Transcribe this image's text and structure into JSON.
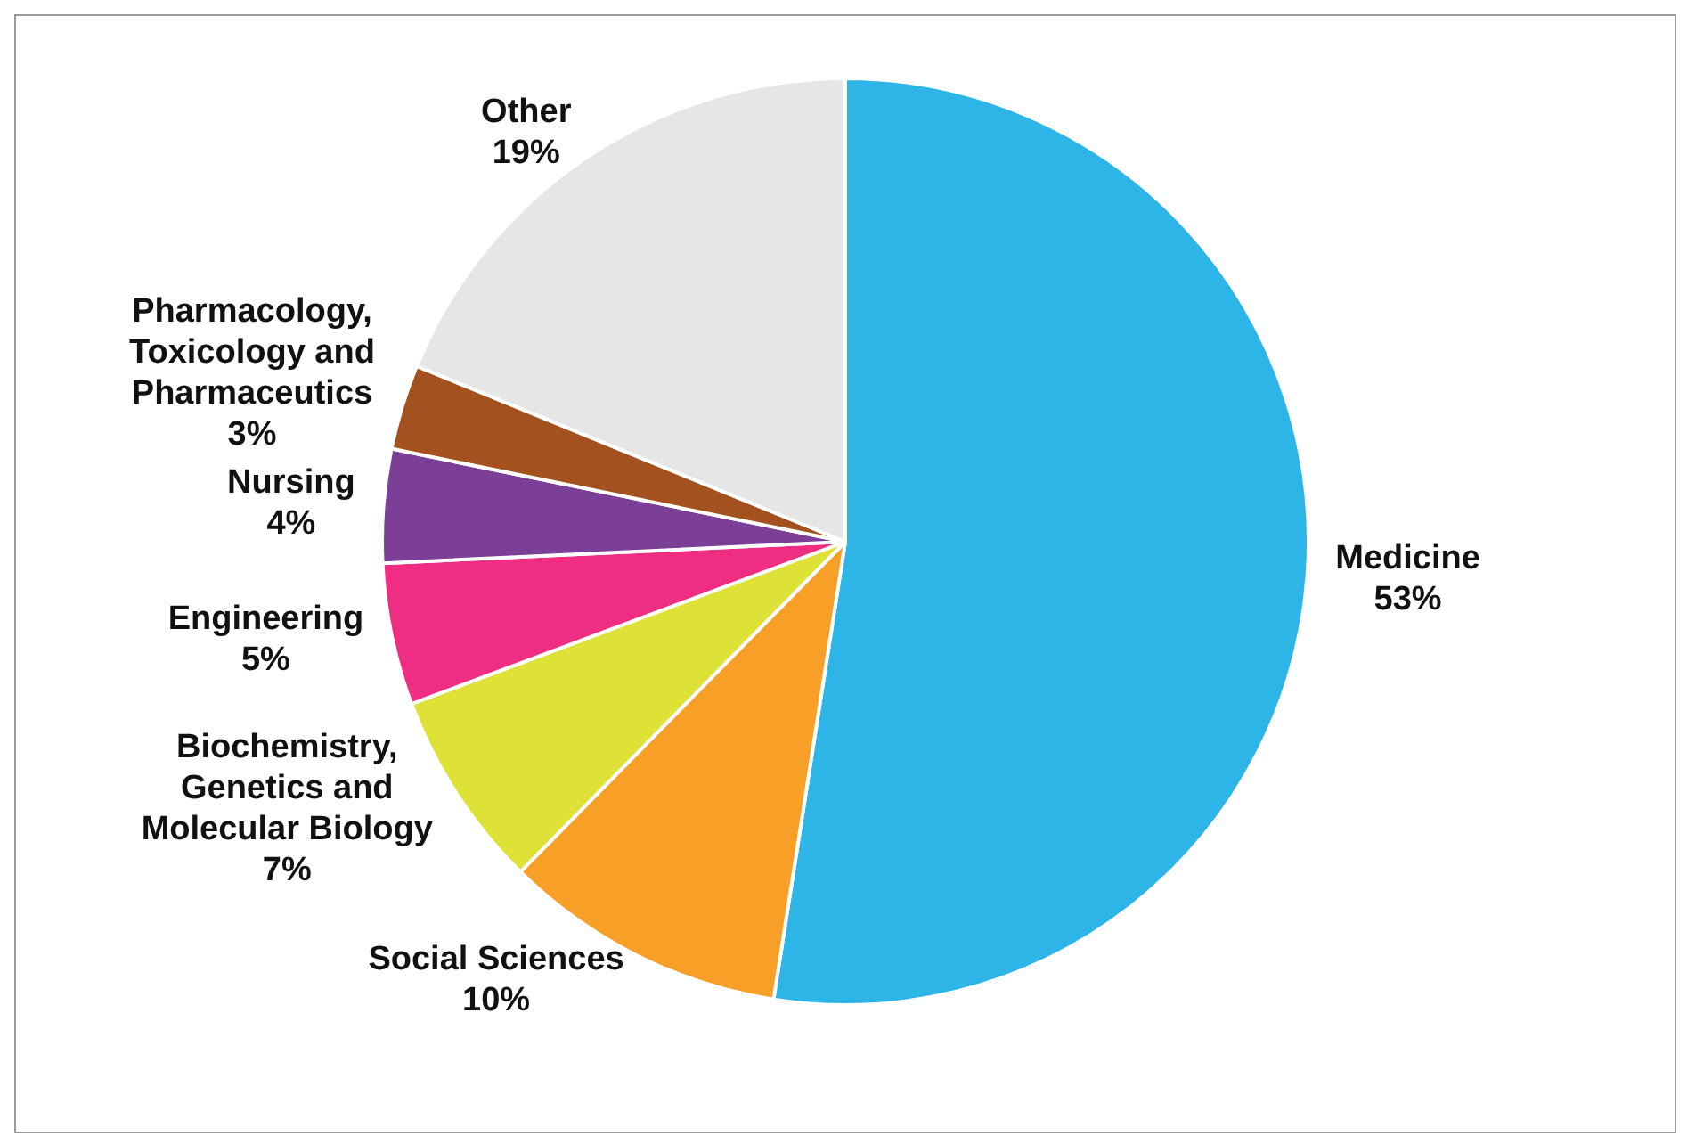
{
  "chart_data": {
    "type": "pie",
    "categories": [
      "Medicine",
      "Social Sciences",
      "Biochemistry, Genetics and Molecular Biology",
      "Engineering",
      "Nursing",
      "Pharmacology, Toxicology and Pharmaceutics",
      "Other"
    ],
    "values": [
      53,
      10,
      7,
      5,
      4,
      3,
      19
    ],
    "colors": [
      "#2db5e8",
      "#f79f27",
      "#dfe236",
      "#ee2d83",
      "#7b3f98",
      "#a3511f",
      "#e6e6e6"
    ],
    "value_labels": [
      "53%",
      "10%",
      "7%",
      "5%",
      "4%",
      "3%",
      "19%"
    ],
    "legend": false
  }
}
